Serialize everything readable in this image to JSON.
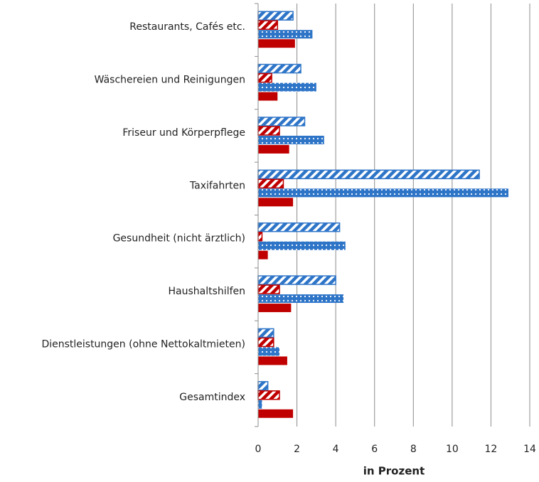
{
  "chart_data": {
    "type": "barh",
    "x_label": "in Prozent",
    "categories": [
      "Restaurants, Cafés etc.",
      "Wäschereien und Reinigungen",
      "Friseur und Körperpflege",
      "Taxifahrten",
      "Gesundheit (nicht ärztlich)",
      "Haushaltshilfen",
      "Dienstleistungen (ohne Nettokaltmieten)",
      "Gesamtindex"
    ],
    "series": [
      {
        "color": "#2e75c8",
        "pattern": "hatch",
        "values": [
          1.8,
          2.2,
          2.4,
          11.4,
          4.2,
          4.0,
          0.8,
          0.5
        ]
      },
      {
        "color": "#c00000",
        "pattern": "hatch",
        "values": [
          1.0,
          0.7,
          1.1,
          1.3,
          0.2,
          1.1,
          0.8,
          1.1
        ]
      },
      {
        "color": "#2e75c8",
        "pattern": "dots",
        "values": [
          2.8,
          3.0,
          3.4,
          12.9,
          4.5,
          4.4,
          1.1,
          0.2
        ]
      },
      {
        "color": "#c00000",
        "pattern": "solid",
        "values": [
          1.9,
          1.0,
          1.6,
          1.8,
          0.5,
          1.7,
          1.5,
          1.8
        ]
      }
    ],
    "xlim": [
      0,
      14
    ],
    "xticks": [
      0,
      2,
      4,
      6,
      8,
      10,
      12,
      14
    ],
    "grid": true
  }
}
